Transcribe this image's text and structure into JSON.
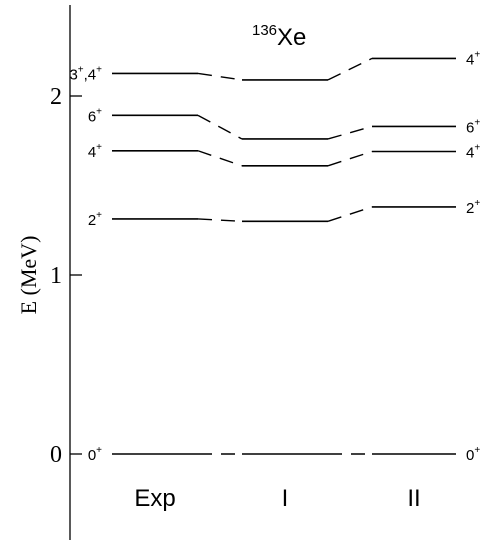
{
  "chart_data": {
    "type": "level-scheme",
    "nucleus": {
      "mass": "136",
      "symbol": "Xe"
    },
    "ylabel": "E (MeV)",
    "ylim": [
      -0.8,
      2.5
    ],
    "yticks": [
      {
        "value": 0,
        "label": "0"
      },
      {
        "value": 1,
        "label": "1"
      },
      {
        "value": 2,
        "label": "2"
      }
    ],
    "columns": [
      {
        "label": "Exp",
        "levels": [
          {
            "energy": 0.0,
            "spin": "0",
            "parity": "+"
          },
          {
            "energy": 1.313,
            "spin": "2",
            "parity": "+"
          },
          {
            "energy": 1.694,
            "spin": "4",
            "parity": "+"
          },
          {
            "energy": 1.892,
            "spin": "6",
            "parity": "+"
          },
          {
            "energy": 2.126,
            "spin": "3",
            "parity": "+",
            "spin2": "4",
            "parity2": "+"
          }
        ]
      },
      {
        "label": "I",
        "levels": [
          {
            "energy": 0.0
          },
          {
            "energy": 1.3
          },
          {
            "energy": 1.61
          },
          {
            "energy": 1.76
          },
          {
            "energy": 2.09
          }
        ]
      },
      {
        "label": "II",
        "levels": [
          {
            "energy": 0.0,
            "spin": "0",
            "parity": "+"
          },
          {
            "energy": 1.38,
            "spin": "2",
            "parity": "+"
          },
          {
            "energy": 1.69,
            "spin": "4",
            "parity": "+"
          },
          {
            "energy": 1.83,
            "spin": "6",
            "parity": "+"
          },
          {
            "energy": 2.21,
            "spin": "4",
            "parity": "+"
          }
        ]
      }
    ]
  }
}
